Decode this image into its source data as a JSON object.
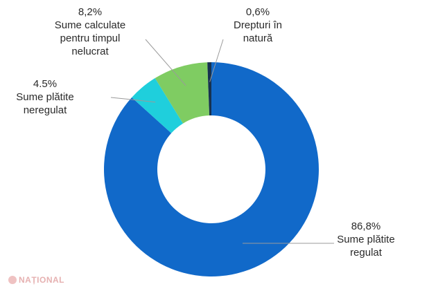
{
  "chart_data": {
    "type": "pie",
    "donut": true,
    "categories": [
      "Sume plătite regulat",
      "Sume plătite neregulat",
      "Sume calculate pentru timpul nelucrat",
      "Drepturi în natură"
    ],
    "values": [
      86.8,
      4.5,
      8.2,
      0.6
    ],
    "value_labels": [
      "86,8%",
      "4.5%",
      "8,2%",
      "0,6%"
    ],
    "label_lines": [
      [
        "Sume plătite",
        "regulat"
      ],
      [
        "Sume plătite",
        "neregulat"
      ],
      [
        "Sume calculate",
        "pentru timpul",
        "nelucrat"
      ],
      [
        "Drepturi în",
        "natură"
      ]
    ],
    "colors": [
      "#1169c9",
      "#1fcfdc",
      "#7fcc62",
      "#17324f"
    ],
    "title": "",
    "legend": "none"
  },
  "watermark": {
    "text": "NAȚIONAL",
    "icon": "national-logo-icon"
  }
}
